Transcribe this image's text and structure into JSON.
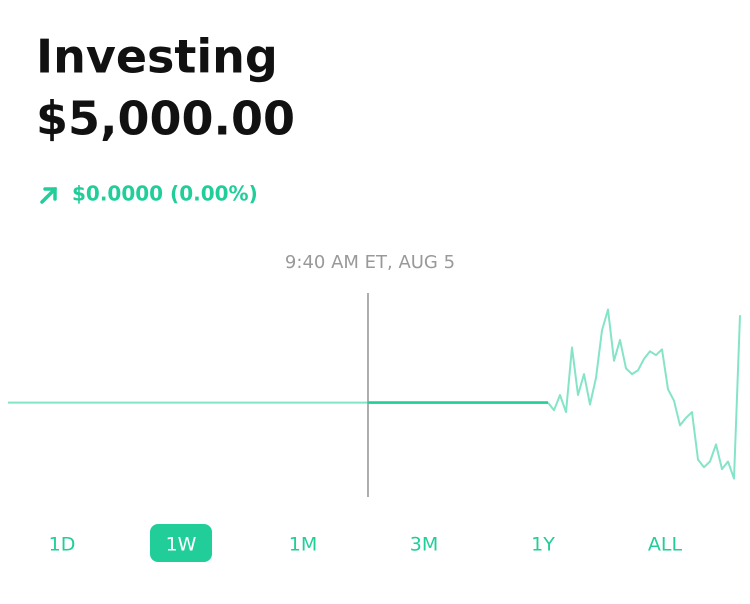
{
  "header": {
    "title": "Investing",
    "balance": "$5,000.00",
    "change": "$0.0000 (0.00%)"
  },
  "chart_data": {
    "type": "line",
    "cursor_label": "9:40 AM ET, AUG 5",
    "cursor_x": 60,
    "color": "#21ce99",
    "xlim": [
      0,
      122
    ],
    "ylim": [
      0,
      100
    ],
    "x": [
      0,
      60,
      90,
      91,
      92,
      93,
      94,
      95,
      96,
      97,
      98,
      99,
      100,
      101,
      102,
      103,
      104,
      105,
      106,
      107,
      108,
      109,
      110,
      111,
      112,
      113,
      114,
      115,
      116,
      117,
      118,
      119,
      120,
      121,
      122
    ],
    "values": [
      46,
      46,
      46,
      42,
      50,
      41,
      75,
      50,
      61,
      45,
      59,
      84,
      95,
      68,
      79,
      64,
      61,
      63,
      69,
      73,
      71,
      74,
      53,
      47,
      34,
      38,
      41,
      16,
      12,
      15,
      24,
      11,
      15,
      6,
      92
    ]
  },
  "tabs": {
    "items": [
      "1D",
      "1W",
      "1M",
      "3M",
      "1Y",
      "ALL"
    ],
    "selected": 1
  }
}
